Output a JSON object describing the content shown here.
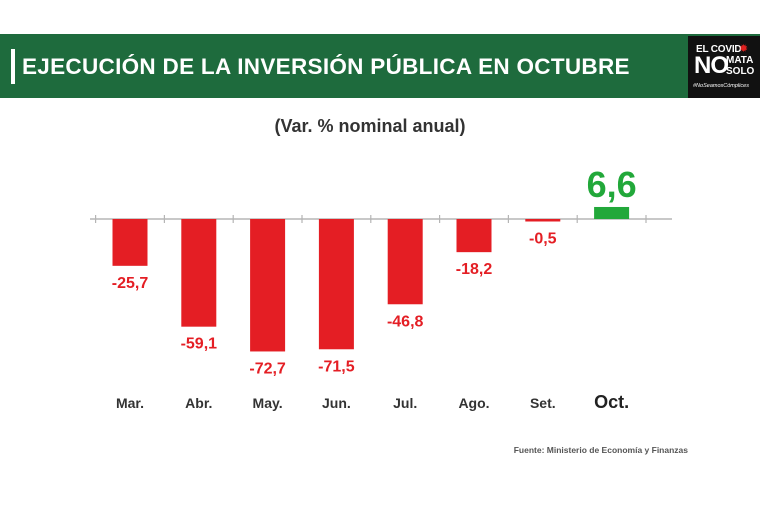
{
  "header": {
    "title": "EJECUCIÓN DE LA INVERSIÓN PÚBLICA EN OCTUBRE"
  },
  "logo": {
    "line1": "EL COVID",
    "line2": "NO",
    "line3": "MATA",
    "line4": "SOLO",
    "tagline": "#NoSeamosCómplices",
    "sun_icon": "virus-icon"
  },
  "source": "Fuente: Ministerio de Economía y Finanzas",
  "colors": {
    "header": "#1e6b3d",
    "negative": "#e41e24",
    "positive": "#22a83a"
  },
  "chart_data": {
    "type": "bar",
    "title": "(Var. % nominal anual)",
    "categories": [
      "Mar.",
      "Abr.",
      "May.",
      "Jun.",
      "Jul.",
      "Ago.",
      "Set.",
      "Oct."
    ],
    "values": [
      -25.7,
      -59.1,
      -72.7,
      -71.5,
      -46.8,
      -18.2,
      -0.5,
      6.6
    ],
    "data_labels": [
      "-25,7",
      "-59,1",
      "-72,7",
      "-71,5",
      "-46,8",
      "-18,2",
      "-0,5",
      "6,6"
    ],
    "highlight_category": "Oct.",
    "ylim": [
      -75,
      10
    ],
    "xlabel": "",
    "ylabel": "",
    "grid": false,
    "legend": "none"
  }
}
